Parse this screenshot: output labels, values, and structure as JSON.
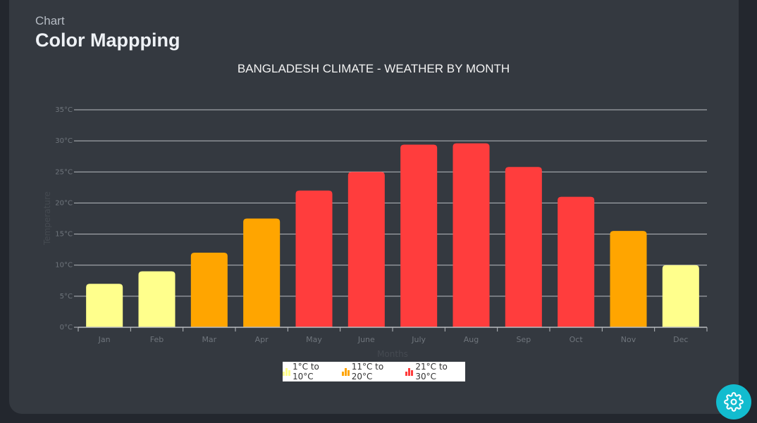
{
  "header": {
    "eyebrow": "Chart",
    "title": "Color Mappping"
  },
  "colors": {
    "low": "#ffff8c",
    "mid": "#ffa500",
    "high": "#ff3d3d",
    "grid": "#b8bcc0",
    "settings": "#12bccf"
  },
  "chart_data": {
    "type": "bar",
    "title": "BANGLADESH CLIMATE - WEATHER BY MONTH",
    "xlabel": "Months",
    "ylabel": "Temperature",
    "categories": [
      "Jan",
      "Feb",
      "Mar",
      "Apr",
      "May",
      "June",
      "July",
      "Aug",
      "Sep",
      "Oct",
      "Nov",
      "Dec"
    ],
    "values": [
      7,
      9,
      12,
      17.5,
      22,
      25,
      29.4,
      29.6,
      25.8,
      21,
      15.5,
      10
    ],
    "ylim": [
      0,
      35
    ],
    "yticks": [
      "0°C",
      "5°C",
      "10°C",
      "15°C",
      "20°C",
      "25°C",
      "30°C",
      "35°C"
    ],
    "grid": true,
    "legend_position": "bottom-center",
    "color_ranges": [
      {
        "label": "1°C to 10°C",
        "from": 1,
        "to": 10,
        "color": "#ffff8c"
      },
      {
        "label": "11°C to 20°C",
        "from": 11,
        "to": 20,
        "color": "#ffa500"
      },
      {
        "label": "21°C to 30°C",
        "from": 21,
        "to": 30,
        "color": "#ff3d3d"
      }
    ]
  },
  "settings_button": {
    "icon": "gear-icon"
  }
}
